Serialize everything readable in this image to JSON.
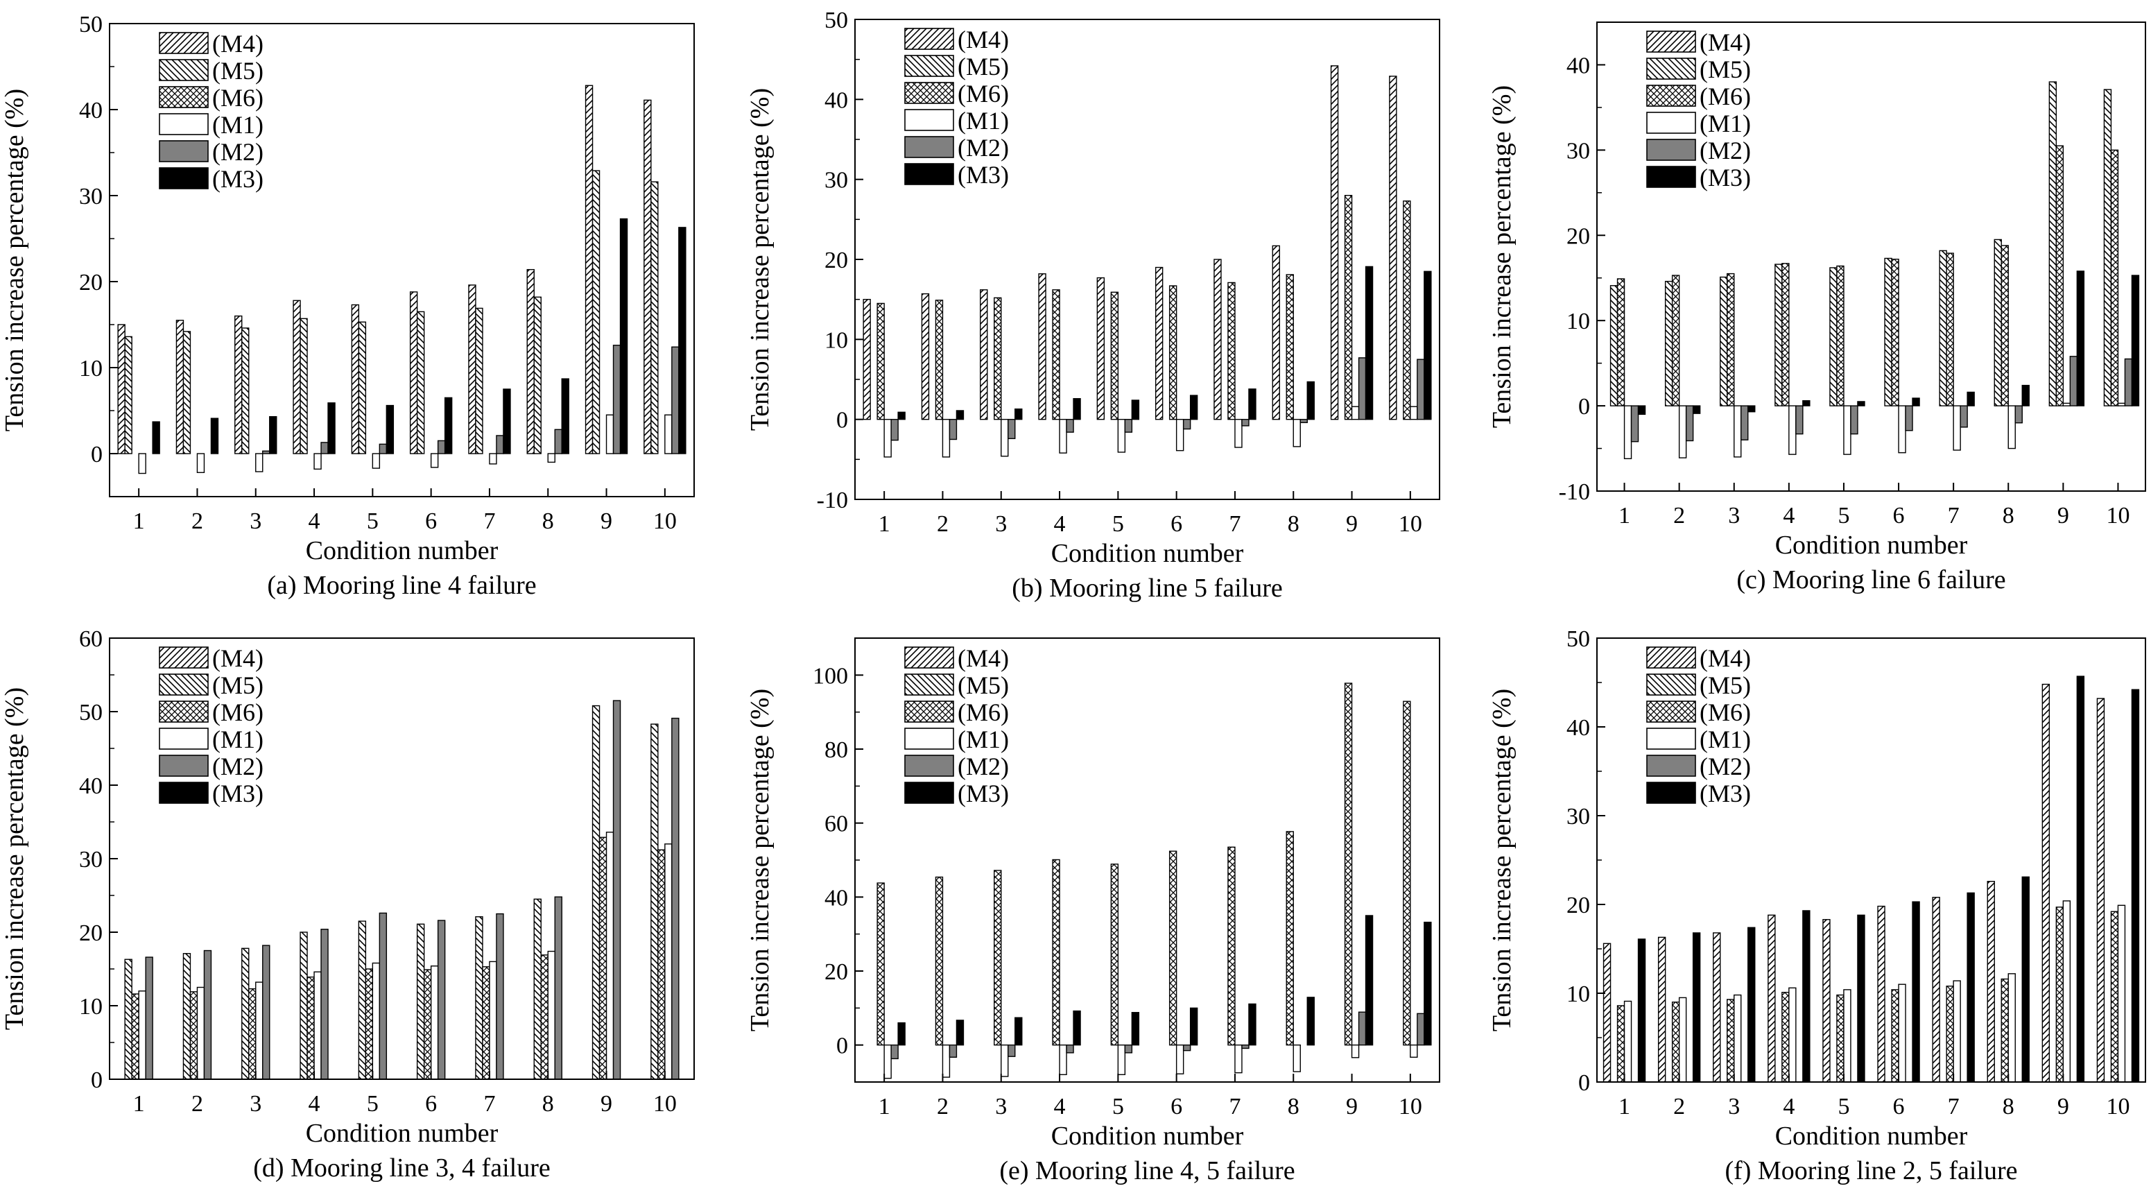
{
  "colors": {
    "ink": "#000000",
    "background": "#ffffff",
    "m2_fill": "#808080",
    "m3_fill": "#000000"
  },
  "legend_patterns": [
    "diagonal-hatch",
    "back-diagonal-hatch",
    "cross-hatch",
    "white",
    "gray",
    "black"
  ],
  "chart_data": [
    {
      "type": "bar",
      "caption": "(a) Mooring line 4 failure",
      "xlabel": "Condition number",
      "ylabel": "Tension increase percentage (%)",
      "categories": [
        "1",
        "2",
        "3",
        "4",
        "5",
        "6",
        "7",
        "8",
        "9",
        "10"
      ],
      "ylim": [
        -5,
        50
      ],
      "yticks": [
        0,
        10,
        20,
        30,
        40,
        50
      ],
      "legend_position": "top-left",
      "series": [
        {
          "name": "(M4)",
          "values": [
            15,
            15.5,
            16,
            17.8,
            17.3,
            18.8,
            19.6,
            21.4,
            42.8,
            41.1
          ]
        },
        {
          "name": "(M5)",
          "values": [
            13.6,
            14.2,
            14.6,
            15.7,
            15.3,
            16.5,
            16.9,
            18.2,
            32.9,
            31.6
          ]
        },
        {
          "name": "(M6)",
          "values": [
            0,
            0,
            0,
            0,
            0,
            0,
            0,
            0,
            0,
            0
          ]
        },
        {
          "name": "(M1)",
          "values": [
            -2.3,
            -2.2,
            -2.1,
            -1.8,
            -1.7,
            -1.6,
            -1.2,
            -1,
            4.5,
            4.5
          ]
        },
        {
          "name": "(M2)",
          "values": [
            0,
            0,
            0.3,
            1.3,
            1.1,
            1.5,
            2.1,
            2.8,
            12.6,
            12.4
          ]
        },
        {
          "name": "(M3)",
          "values": [
            3.7,
            4.1,
            4.3,
            5.9,
            5.6,
            6.5,
            7.5,
            8.7,
            27.3,
            26.3
          ]
        }
      ]
    },
    {
      "type": "bar",
      "caption": "(b) Mooring line 5 failure",
      "xlabel": "Condition number",
      "ylabel": "Tension increase percentage (%)",
      "categories": [
        "1",
        "2",
        "3",
        "4",
        "5",
        "6",
        "7",
        "8",
        "9",
        "10"
      ],
      "ylim": [
        -10,
        50
      ],
      "yticks": [
        -10,
        0,
        10,
        20,
        30,
        40,
        50
      ],
      "legend_position": "top-left",
      "series": [
        {
          "name": "(M4)",
          "values": [
            15,
            15.7,
            16.2,
            18.2,
            17.7,
            19,
            20,
            21.7,
            44.2,
            42.9
          ]
        },
        {
          "name": "(M5)",
          "values": [
            0,
            0,
            0,
            0,
            0,
            0,
            0,
            0,
            0,
            0
          ]
        },
        {
          "name": "(M6)",
          "values": [
            14.5,
            14.9,
            15.2,
            16.2,
            15.9,
            16.7,
            17.1,
            18.1,
            28,
            27.3
          ]
        },
        {
          "name": "(M1)",
          "values": [
            -4.7,
            -4.7,
            -4.6,
            -4.2,
            -4.1,
            -3.9,
            -3.5,
            -3.4,
            1.6,
            1.6
          ]
        },
        {
          "name": "(M2)",
          "values": [
            -2.6,
            -2.5,
            -2.4,
            -1.6,
            -1.6,
            -1.2,
            -0.8,
            -0.4,
            7.7,
            7.5
          ]
        },
        {
          "name": "(M3)",
          "values": [
            0.9,
            1.1,
            1.3,
            2.6,
            2.4,
            3,
            3.8,
            4.7,
            19.1,
            18.5
          ]
        }
      ]
    },
    {
      "type": "bar",
      "caption": "(c) Mooring line 6 failure",
      "xlabel": "Condition number",
      "ylabel": "Tension increase percentage (%)",
      "categories": [
        "1",
        "2",
        "3",
        "4",
        "5",
        "6",
        "7",
        "8",
        "9",
        "10"
      ],
      "ylim": [
        -10,
        45
      ],
      "yticks": [
        -10,
        0,
        10,
        20,
        30,
        40
      ],
      "legend_position": "top-left",
      "series": [
        {
          "name": "(M4)",
          "values": [
            0,
            0,
            0,
            0,
            0,
            0,
            0,
            0,
            0,
            0
          ]
        },
        {
          "name": "(M5)",
          "values": [
            14.1,
            14.6,
            15.1,
            16.6,
            16.2,
            17.3,
            18.2,
            19.5,
            38,
            37.1
          ]
        },
        {
          "name": "(M6)",
          "values": [
            14.9,
            15.3,
            15.5,
            16.7,
            16.4,
            17.2,
            17.9,
            18.8,
            30.5,
            30
          ]
        },
        {
          "name": "(M1)",
          "values": [
            -6.2,
            -6.1,
            -6,
            -5.7,
            -5.7,
            -5.5,
            -5.2,
            -5,
            0.3,
            0.3
          ]
        },
        {
          "name": "(M2)",
          "values": [
            -4.2,
            -4.1,
            -4,
            -3.3,
            -3.3,
            -2.9,
            -2.5,
            -2,
            5.8,
            5.5
          ]
        },
        {
          "name": "(M3)",
          "values": [
            -1,
            -0.9,
            -0.7,
            0.6,
            0.5,
            0.9,
            1.6,
            2.4,
            15.8,
            15.3
          ]
        }
      ]
    },
    {
      "type": "bar",
      "caption": "(d) Mooring line 3, 4 failure",
      "xlabel": "Condition number",
      "ylabel": "Tension increase percentage (%)",
      "categories": [
        "1",
        "2",
        "3",
        "4",
        "5",
        "6",
        "7",
        "8",
        "9",
        "10"
      ],
      "ylim": [
        0,
        60
      ],
      "yticks": [
        0,
        10,
        20,
        30,
        40,
        50,
        60
      ],
      "legend_position": "top-left",
      "series": [
        {
          "name": "(M4)",
          "values": [
            0,
            0,
            0,
            0,
            0,
            0,
            0,
            0,
            0,
            0
          ]
        },
        {
          "name": "(M5)",
          "values": [
            16.3,
            17.1,
            17.8,
            20,
            21.5,
            21.1,
            22.1,
            24.5,
            50.8,
            48.3
          ]
        },
        {
          "name": "(M6)",
          "values": [
            11.6,
            11.9,
            12.3,
            13.9,
            15,
            14.9,
            15.3,
            16.9,
            32.9,
            31.2
          ]
        },
        {
          "name": "(M1)",
          "values": [
            12,
            12.5,
            13.2,
            14.6,
            15.8,
            15.4,
            16,
            17.4,
            33.6,
            32
          ]
        },
        {
          "name": "(M2)",
          "values": [
            16.6,
            17.5,
            18.2,
            20.4,
            22.6,
            21.6,
            22.5,
            24.8,
            51.5,
            49.1
          ]
        },
        {
          "name": "(M3)",
          "values": [
            0,
            0,
            0,
            0,
            0,
            0,
            0,
            0,
            0,
            0
          ]
        }
      ]
    },
    {
      "type": "bar",
      "caption": "(e) Mooring line 4, 5 failure",
      "xlabel": "Condition number",
      "ylabel": "Tension increase percentage (%)",
      "categories": [
        "1",
        "2",
        "3",
        "4",
        "5",
        "6",
        "7",
        "8",
        "9",
        "10"
      ],
      "ylim": [
        -10,
        110
      ],
      "yticks": [
        0,
        20,
        40,
        60,
        80,
        100
      ],
      "legend_position": "top-left",
      "series": [
        {
          "name": "(M4)",
          "values": [
            0,
            0,
            0,
            0,
            0,
            0,
            0,
            0,
            0,
            0
          ]
        },
        {
          "name": "(M5)",
          "values": [
            0,
            0,
            0,
            0,
            0,
            0,
            0,
            0,
            0,
            0
          ]
        },
        {
          "name": "(M6)",
          "values": [
            43.8,
            45.4,
            47.2,
            50.1,
            48.9,
            52.4,
            53.5,
            57.7,
            97.8,
            92.9
          ]
        },
        {
          "name": "(M1)",
          "values": [
            -9,
            -8.7,
            -8.5,
            -8,
            -8,
            -7.8,
            -7.5,
            -7.2,
            -3.4,
            -3.3
          ]
        },
        {
          "name": "(M2)",
          "values": [
            -3.7,
            -3.3,
            -3.1,
            -2.1,
            -2.1,
            -1.5,
            -0.9,
            0,
            8.9,
            8.5
          ]
        },
        {
          "name": "(M3)",
          "values": [
            6,
            6.7,
            7.4,
            9.2,
            8.8,
            10,
            11.1,
            12.9,
            35,
            33.2
          ]
        }
      ]
    },
    {
      "type": "bar",
      "caption": "(f) Mooring line 2, 5 failure",
      "xlabel": "Condition number",
      "ylabel": "Tension increase percentage (%)",
      "categories": [
        "1",
        "2",
        "3",
        "4",
        "5",
        "6",
        "7",
        "8",
        "9",
        "10"
      ],
      "ylim": [
        0,
        50
      ],
      "yticks": [
        0,
        10,
        20,
        30,
        40,
        50
      ],
      "legend_position": "top-left",
      "series": [
        {
          "name": "(M4)",
          "values": [
            15.6,
            16.3,
            16.8,
            18.8,
            18.3,
            19.8,
            20.8,
            22.6,
            44.8,
            43.2
          ]
        },
        {
          "name": "(M5)",
          "values": [
            0,
            0,
            0,
            0,
            0,
            0,
            0,
            0,
            0,
            0
          ]
        },
        {
          "name": "(M6)",
          "values": [
            8.6,
            9,
            9.3,
            10.1,
            9.8,
            10.4,
            10.8,
            11.6,
            19.7,
            19.2
          ]
        },
        {
          "name": "(M1)",
          "values": [
            9.1,
            9.5,
            9.8,
            10.6,
            10.4,
            11,
            11.4,
            12.2,
            20.4,
            19.9
          ]
        },
        {
          "name": "(M2)",
          "values": [
            0,
            0,
            0,
            0,
            0,
            0,
            0,
            0,
            0,
            0
          ]
        },
        {
          "name": "(M3)",
          "values": [
            16.1,
            16.8,
            17.4,
            19.3,
            18.8,
            20.3,
            21.3,
            23.1,
            45.7,
            44.2
          ]
        }
      ]
    }
  ]
}
